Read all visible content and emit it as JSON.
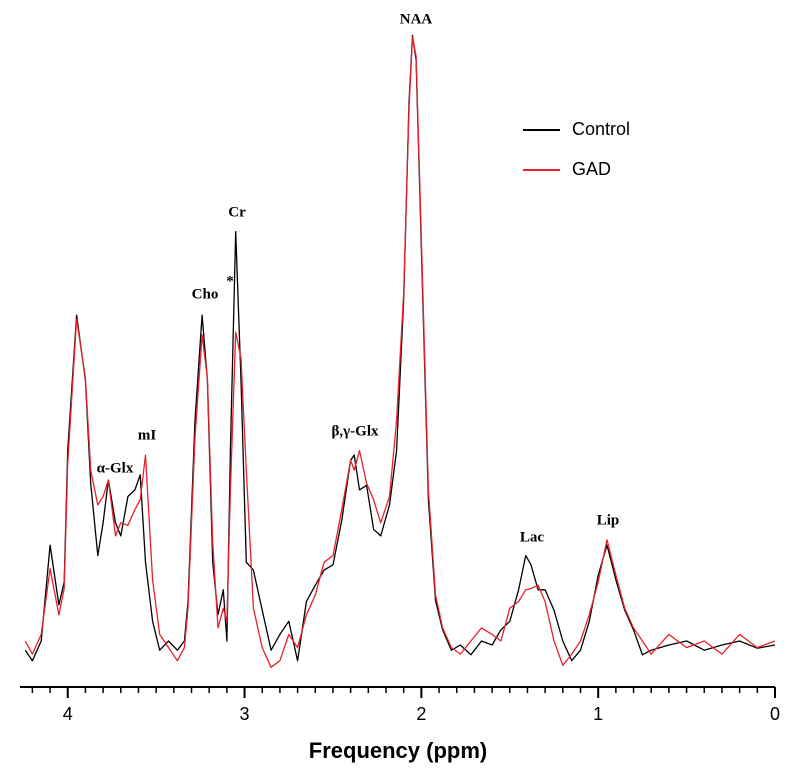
{
  "chart_data": {
    "type": "line",
    "xlabel": "Frequency (ppm)",
    "xlim": [
      4.27,
      0
    ],
    "xticks": [
      4,
      3,
      2,
      1,
      0
    ],
    "xminor_step": 0.1,
    "ylim": [
      0,
      100
    ],
    "legend": "upper right",
    "annotations": [
      "NAA",
      "Cr",
      "Cho",
      "*",
      "mI",
      "α-Glx",
      "β,γ-Glx",
      "Lac",
      "Lip"
    ],
    "x": [
      4.24,
      4.2,
      4.15,
      4.1,
      4.05,
      4.02,
      4.0,
      3.95,
      3.9,
      3.87,
      3.83,
      3.8,
      3.77,
      3.73,
      3.7,
      3.66,
      3.62,
      3.59,
      3.56,
      3.52,
      3.48,
      3.43,
      3.38,
      3.34,
      3.32,
      3.28,
      3.24,
      3.21,
      3.18,
      3.15,
      3.12,
      3.1,
      3.08,
      3.05,
      3.02,
      2.99,
      2.95,
      2.9,
      2.85,
      2.8,
      2.75,
      2.7,
      2.65,
      2.6,
      2.55,
      2.5,
      2.45,
      2.4,
      2.38,
      2.35,
      2.31,
      2.27,
      2.23,
      2.18,
      2.14,
      2.1,
      2.07,
      2.05,
      2.03,
      2.0,
      1.96,
      1.92,
      1.88,
      1.83,
      1.78,
      1.72,
      1.66,
      1.6,
      1.55,
      1.5,
      1.45,
      1.41,
      1.38,
      1.34,
      1.3,
      1.25,
      1.2,
      1.15,
      1.1,
      1.05,
      1.0,
      0.95,
      0.9,
      0.85,
      0.8,
      0.75,
      0.7,
      0.6,
      0.5,
      0.4,
      0.3,
      0.2,
      0.1,
      0.0
    ],
    "series": [
      {
        "name": "Control",
        "color": "#000000",
        "values": [
          5.6,
          4,
          7,
          21.6,
          12.5,
          16,
          36,
          56.6,
          46.7,
          31,
          20,
          25,
          31.5,
          25,
          23,
          29,
          30,
          32.3,
          19,
          10,
          5.6,
          7,
          5.6,
          7,
          13,
          40.6,
          56.6,
          46.7,
          19,
          11,
          14.8,
          7,
          36,
          69.3,
          46.7,
          19,
          17.8,
          11.7,
          5.6,
          8,
          10,
          4,
          13,
          15.5,
          17.8,
          18.6,
          25.4,
          34.5,
          35.3,
          30,
          30.7,
          24,
          23,
          27.7,
          36,
          59,
          89,
          99.2,
          95.4,
          66.5,
          28.5,
          13.2,
          8.7,
          5.6,
          6.4,
          4.9,
          7,
          6.4,
          8.7,
          10,
          14.8,
          20,
          18.6,
          14.8,
          14.8,
          11.7,
          7,
          4,
          5.6,
          10,
          17,
          21.6,
          16.3,
          11.7,
          8.7,
          4.9,
          5.6,
          6.4,
          7,
          5.6,
          6.4,
          7,
          5.9,
          6.4
        ]
      },
      {
        "name": "GAD",
        "color": "#e8202a",
        "values": [
          7,
          5,
          8,
          18,
          11,
          15,
          34,
          56,
          47,
          33,
          27.7,
          29,
          31.5,
          23,
          25,
          24.6,
          27,
          28.5,
          35.3,
          16.3,
          8,
          6,
          4,
          6,
          12,
          38,
          53.6,
          47,
          22,
          9,
          12,
          10,
          30,
          54,
          50,
          33,
          12,
          6,
          3,
          4,
          8,
          6,
          11,
          14,
          19,
          20,
          27,
          34.5,
          33,
          36,
          31,
          28.5,
          25,
          29,
          40.6,
          60,
          88,
          99,
          96,
          68,
          30,
          14,
          9,
          6,
          5,
          7,
          9,
          8,
          7,
          12,
          13,
          14.8,
          15,
          15.5,
          13,
          7,
          3.3,
          5,
          7,
          11,
          16,
          22.4,
          17,
          12,
          9,
          7,
          5,
          8,
          6,
          7,
          5,
          8,
          6,
          7
        ]
      }
    ]
  }
}
